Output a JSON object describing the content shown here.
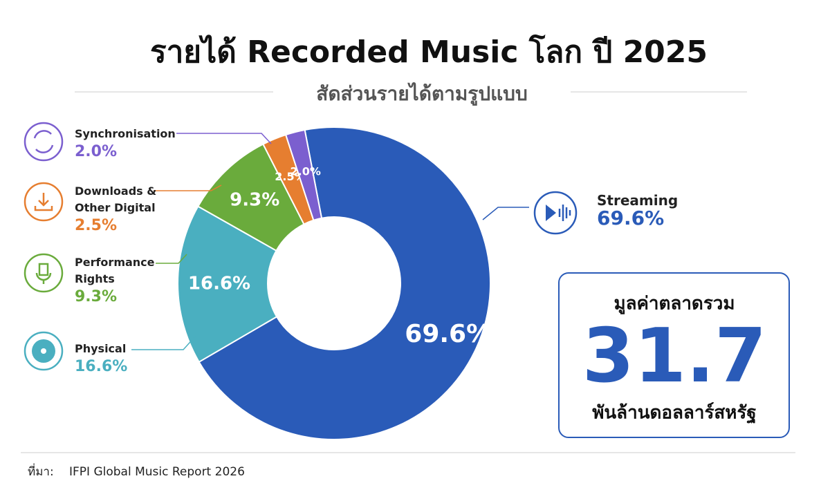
{
  "chart_data": {
    "type": "donut",
    "title": "รายได้ Recorded Music โลก ปี 2025",
    "subtitle": "สัดส่วนรายได้ตามรูปแบบ",
    "categories": [
      "Streaming",
      "Physical",
      "Performance Rights",
      "Downloads & Other Digital",
      "Synchronisation"
    ],
    "values": [
      69.6,
      16.6,
      9.3,
      2.5,
      2.0
    ],
    "value_labels": [
      "69.6%",
      "16.6%",
      "9.3%",
      "2.5%",
      "2.0%"
    ],
    "colors": [
      "#2a5bb8",
      "#4aafc0",
      "#6aab3c",
      "#e67e30",
      "#7b5fcf"
    ]
  },
  "total": {
    "label": "มูลค่าตลาดรวม",
    "value": 31.7,
    "unit": "พันล้านดอลลาร์สหรัฐ"
  },
  "source": {
    "label": "ที่มา:",
    "text": "IFPI Global Music Report 2026"
  }
}
